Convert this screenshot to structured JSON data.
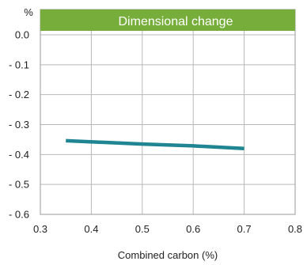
{
  "chart_data": {
    "type": "line",
    "title": "Dimensional change",
    "xlabel": "Combined carbon (%)",
    "ylabel": "%",
    "xlim": [
      0.3,
      0.8
    ],
    "ylim": [
      -0.6,
      0.0
    ],
    "x_ticks": [
      0.3,
      0.4,
      0.5,
      0.6,
      0.7,
      0.8
    ],
    "x_tick_labels": [
      "0.3",
      "0.4",
      "0.5",
      "0.6",
      "0.7",
      "0.8"
    ],
    "y_ticks": [
      0.0,
      -0.1,
      -0.2,
      -0.3,
      -0.4,
      -0.5,
      -0.6
    ],
    "y_tick_labels": [
      "0.0",
      "- 0.1",
      "- 0.2",
      "- 0.3",
      "- 0.4",
      "- 0.5",
      "- 0.6"
    ],
    "grid": true,
    "series": [
      {
        "x": [
          0.35,
          0.5,
          0.6,
          0.7
        ],
        "y": [
          -0.354,
          -0.365,
          -0.371,
          -0.38
        ]
      }
    ],
    "colors": {
      "title_bar": "#76ad3b",
      "line": "#1f8592",
      "grid": "#b8b8b8",
      "frame": "#999999"
    }
  }
}
